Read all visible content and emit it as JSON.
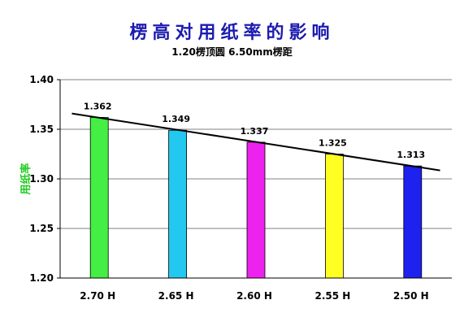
{
  "chart_data": {
    "type": "bar",
    "title": "楞高对用纸率的影响",
    "subtitle": "1.20楞顶圆    6.50mm楞距",
    "ylabel": "用纸率",
    "xlabel": "",
    "categories": [
      "2.70 H",
      "2.65 H",
      "2.60 H",
      "2.55 H",
      "2.50 H"
    ],
    "values": [
      1.362,
      1.349,
      1.337,
      1.325,
      1.313
    ],
    "data_labels": [
      "1.362",
      "1.349",
      "1.337",
      "1.325",
      "1.313"
    ],
    "bar_colors": [
      "#44ee44",
      "#22c8f0",
      "#ee22ee",
      "#ffff22",
      "#1e22ee"
    ],
    "ylim": [
      1.2,
      1.4
    ],
    "yticks": [
      1.2,
      1.25,
      1.3,
      1.35,
      1.4
    ],
    "ytick_labels": [
      "1.20",
      "1.25",
      "1.30",
      "1.35",
      "1.40"
    ],
    "grid": true,
    "trendline": {
      "type": "linear",
      "color": "#000000"
    },
    "colors": {
      "title": "#1c1cb0",
      "ylabel": "#22cc22",
      "grid": "#808080"
    }
  }
}
